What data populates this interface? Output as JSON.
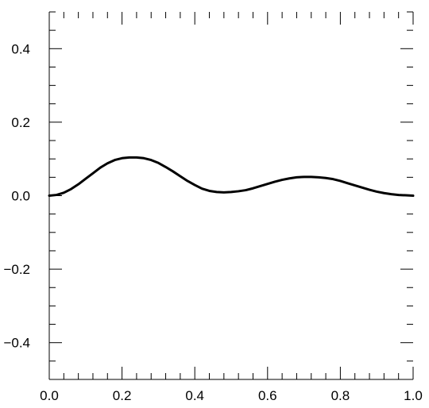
{
  "chart_data": {
    "type": "line",
    "title": "",
    "xlabel": "",
    "ylabel": "",
    "xlim": [
      0.0,
      1.0
    ],
    "ylim": [
      -0.5,
      0.5
    ],
    "grid": false,
    "x_ticks": [
      0.0,
      0.2,
      0.4,
      0.6,
      0.8,
      1.0
    ],
    "x_tick_labels": [
      "0.0",
      "0.2",
      "0.4",
      "0.6",
      "0.8",
      "1.0"
    ],
    "y_ticks": [
      -0.4,
      -0.2,
      0.0,
      0.2,
      0.4
    ],
    "y_tick_labels": [
      "−0.4",
      "−0.2",
      "0.0",
      "0.2",
      "0.4"
    ],
    "series": [
      {
        "color": "#000000",
        "x": [
          0.0,
          0.02,
          0.04,
          0.06,
          0.08,
          0.1,
          0.12,
          0.14,
          0.16,
          0.18,
          0.2,
          0.22,
          0.24,
          0.26,
          0.28,
          0.3,
          0.32,
          0.34,
          0.36,
          0.38,
          0.4,
          0.42,
          0.44,
          0.46,
          0.48,
          0.5,
          0.52,
          0.54,
          0.56,
          0.58,
          0.6,
          0.62,
          0.64,
          0.66,
          0.68,
          0.7,
          0.72,
          0.74,
          0.76,
          0.78,
          0.8,
          0.82,
          0.84,
          0.86,
          0.88,
          0.9,
          0.92,
          0.94,
          0.96,
          0.98,
          1.0
        ],
        "y": [
          0.0,
          0.002,
          0.008,
          0.018,
          0.031,
          0.046,
          0.061,
          0.076,
          0.088,
          0.097,
          0.102,
          0.104,
          0.104,
          0.102,
          0.097,
          0.089,
          0.078,
          0.066,
          0.053,
          0.04,
          0.029,
          0.019,
          0.013,
          0.01,
          0.009,
          0.01,
          0.012,
          0.015,
          0.02,
          0.026,
          0.032,
          0.038,
          0.043,
          0.047,
          0.05,
          0.051,
          0.051,
          0.05,
          0.048,
          0.045,
          0.04,
          0.034,
          0.028,
          0.022,
          0.016,
          0.011,
          0.007,
          0.004,
          0.002,
          0.001,
          0.0
        ]
      }
    ]
  }
}
